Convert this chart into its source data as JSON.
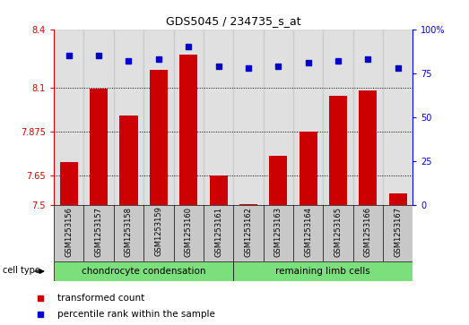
{
  "title": "GDS5045 / 234735_s_at",
  "categories": [
    "GSM1253156",
    "GSM1253157",
    "GSM1253158",
    "GSM1253159",
    "GSM1253160",
    "GSM1253161",
    "GSM1253162",
    "GSM1253163",
    "GSM1253164",
    "GSM1253165",
    "GSM1253166",
    "GSM1253167"
  ],
  "bar_values": [
    7.72,
    8.095,
    7.96,
    8.19,
    8.27,
    7.65,
    7.505,
    7.75,
    7.875,
    8.06,
    8.085,
    7.56
  ],
  "dot_values": [
    85,
    85,
    82,
    83,
    90,
    79,
    78,
    79,
    81,
    82,
    83,
    78
  ],
  "bar_color": "#cc0000",
  "dot_color": "#0000cc",
  "ylim_left": [
    7.5,
    8.4
  ],
  "ylim_right": [
    0,
    100
  ],
  "yticks_left": [
    7.5,
    7.65,
    7.875,
    8.1,
    8.4
  ],
  "ytick_labels_left": [
    "7.5",
    "7.65",
    "7.875",
    "8.1",
    "8.4"
  ],
  "yticks_right": [
    0,
    25,
    50,
    75,
    100
  ],
  "ytick_labels_right": [
    "0",
    "25",
    "50",
    "75",
    "100%"
  ],
  "hlines": [
    7.65,
    7.875,
    8.1
  ],
  "group1_label": "chondrocyte condensation",
  "group2_label": "remaining limb cells",
  "cell_type_label": "cell type",
  "legend1": "transformed count",
  "legend2": "percentile rank within the sample",
  "background_color": "#ffffff",
  "bar_width": 0.6,
  "group_bg_color": "#c8c8c8",
  "cell_type_bg": "#7be07b"
}
